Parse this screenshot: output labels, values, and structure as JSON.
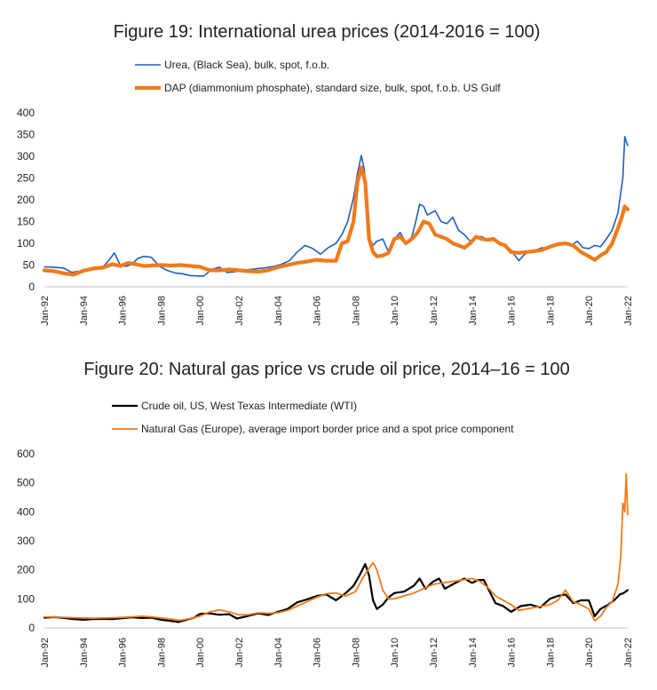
{
  "charts": [
    {
      "id": "fig19",
      "title": "Figure 19: International urea prices (2014-2016 = 100)"
    },
    {
      "id": "fig20",
      "title": "Figure 20: Natural gas price vs crude oil price, 2014–16 = 100"
    }
  ],
  "chart_data": [
    {
      "type": "line",
      "title": "Figure 19: International urea prices (2014-2016 = 100)",
      "xlabel": "",
      "ylabel": "",
      "ylim": [
        0,
        400
      ],
      "yticks": [
        0,
        50,
        100,
        150,
        200,
        250,
        300,
        350,
        400
      ],
      "xlim": [
        1992,
        2022
      ],
      "xticks": [
        "Jan-92",
        "Jan-94",
        "Jan-96",
        "Jan-98",
        "Jan-00",
        "Jan-02",
        "Jan-04",
        "Jan-06",
        "Jan-08",
        "Jan-10",
        "Jan-12",
        "Jan-14",
        "Jan-16",
        "Jan-18",
        "Jan-20",
        "Jan-22"
      ],
      "grid": false,
      "legend_position": "top-left",
      "series": [
        {
          "name": "Urea, (Black Sea), bulk, spot, f.o.b.",
          "color": "#1f5fbf",
          "width": 1.6,
          "x": [
            1992.0,
            1992.5,
            1993.0,
            1993.4,
            1993.8,
            1994.2,
            1994.6,
            1995.0,
            1995.3,
            1995.6,
            1995.9,
            1996.2,
            1996.5,
            1996.8,
            1997.1,
            1997.5,
            1997.9,
            1998.3,
            1998.7,
            1999.1,
            1999.5,
            1999.9,
            2000.2,
            2000.6,
            2001.0,
            2001.4,
            2001.8,
            2002.2,
            2002.6,
            2003.0,
            2003.4,
            2003.8,
            2004.2,
            2004.6,
            2005.0,
            2005.4,
            2005.8,
            2006.2,
            2006.6,
            2007.0,
            2007.3,
            2007.6,
            2007.9,
            2008.1,
            2008.3,
            2008.45,
            2008.6,
            2008.75,
            2008.9,
            2009.1,
            2009.4,
            2009.7,
            2010.0,
            2010.3,
            2010.6,
            2010.9,
            2011.1,
            2011.3,
            2011.5,
            2011.7,
            2011.9,
            2012.1,
            2012.4,
            2012.7,
            2013.0,
            2013.3,
            2013.6,
            2013.9,
            2014.2,
            2014.5,
            2014.8,
            2015.1,
            2015.4,
            2015.7,
            2016.0,
            2016.2,
            2016.4,
            2016.7,
            2017.0,
            2017.3,
            2017.6,
            2017.9,
            2018.2,
            2018.5,
            2018.8,
            2019.1,
            2019.4,
            2019.7,
            2020.0,
            2020.3,
            2020.6,
            2020.9,
            2021.2,
            2021.5,
            2021.75,
            2021.85,
            2021.92,
            2022.0
          ],
          "y": [
            46,
            45,
            43,
            33,
            36,
            41,
            40,
            45,
            60,
            78,
            50,
            47,
            52,
            65,
            70,
            68,
            48,
            38,
            32,
            30,
            26,
            25,
            25,
            40,
            45,
            33,
            35,
            38,
            40,
            42,
            44,
            47,
            52,
            60,
            80,
            95,
            88,
            75,
            90,
            100,
            120,
            150,
            205,
            260,
            302,
            270,
            180,
            110,
            95,
            105,
            110,
            80,
            110,
            125,
            100,
            115,
            150,
            190,
            185,
            165,
            170,
            175,
            150,
            145,
            160,
            130,
            120,
            105,
            115,
            115,
            108,
            112,
            100,
            95,
            85,
            72,
            60,
            75,
            82,
            85,
            90,
            88,
            95,
            100,
            100,
            95,
            105,
            90,
            88,
            95,
            92,
            110,
            130,
            170,
            250,
            345,
            335,
            325
          ]
        },
        {
          "name": "DAP (diammonium phosphate), standard size, bulk, spot, f.o.b. US Gulf",
          "color": "#f07a1a",
          "width": 4.2,
          "x": [
            1992.0,
            1992.5,
            1993.0,
            1993.5,
            1994.0,
            1994.5,
            1995.0,
            1995.5,
            1995.9,
            1996.3,
            1996.7,
            1997.1,
            1997.5,
            1998.0,
            1998.5,
            1999.0,
            1999.5,
            2000.0,
            2000.5,
            2001.0,
            2001.5,
            2002.0,
            2002.5,
            2003.0,
            2003.5,
            2004.0,
            2004.5,
            2005.0,
            2005.5,
            2006.0,
            2006.5,
            2007.0,
            2007.3,
            2007.6,
            2007.9,
            2008.1,
            2008.3,
            2008.5,
            2008.7,
            2008.9,
            2009.1,
            2009.4,
            2009.7,
            2010.0,
            2010.3,
            2010.6,
            2010.9,
            2011.2,
            2011.5,
            2011.8,
            2012.1,
            2012.4,
            2012.7,
            2013.0,
            2013.3,
            2013.6,
            2013.9,
            2014.2,
            2014.5,
            2014.8,
            2015.1,
            2015.4,
            2015.7,
            2016.0,
            2016.4,
            2016.8,
            2017.2,
            2017.6,
            2018.0,
            2018.4,
            2018.8,
            2019.2,
            2019.6,
            2020.0,
            2020.3,
            2020.6,
            2020.9,
            2021.2,
            2021.5,
            2021.7,
            2021.85,
            2022.0
          ],
          "y": [
            38,
            36,
            31,
            28,
            37,
            42,
            44,
            52,
            48,
            55,
            52,
            48,
            49,
            50,
            49,
            50,
            48,
            46,
            38,
            38,
            40,
            38,
            36,
            35,
            38,
            45,
            50,
            55,
            58,
            62,
            60,
            60,
            100,
            105,
            150,
            240,
            275,
            240,
            110,
            80,
            70,
            72,
            78,
            110,
            115,
            100,
            110,
            125,
            150,
            145,
            120,
            115,
            110,
            100,
            95,
            90,
            100,
            115,
            110,
            108,
            110,
            100,
            95,
            80,
            78,
            80,
            82,
            85,
            92,
            98,
            100,
            95,
            80,
            70,
            62,
            72,
            80,
            100,
            135,
            160,
            185,
            178
          ]
        }
      ]
    },
    {
      "type": "line",
      "title": "Figure 20: Natural gas price vs crude oil price, 2014–16 = 100",
      "xlabel": "",
      "ylabel": "",
      "ylim": [
        0,
        600
      ],
      "yticks": [
        0,
        100,
        200,
        300,
        400,
        500,
        600
      ],
      "xlim": [
        1992,
        2022
      ],
      "xticks": [
        "Jan-92",
        "Jan-94",
        "Jan-96",
        "Jan-98",
        "Jan-00",
        "Jan-02",
        "Jan-04",
        "Jan-06",
        "Jan-08",
        "Jan-10",
        "Jan-12",
        "Jan-14",
        "Jan-16",
        "Jan-18",
        "Jan-20",
        "Jan-22"
      ],
      "grid": false,
      "legend_position": "top-left",
      "series": [
        {
          "name": "Crude oil, US, West Texas Intermediate (WTI)",
          "color": "#000000",
          "width": 2.2,
          "x": [
            1992.0,
            1992.5,
            1993.0,
            1993.5,
            1994.0,
            1994.5,
            1995.0,
            1995.5,
            1996.0,
            1996.5,
            1997.0,
            1997.5,
            1998.0,
            1998.5,
            1998.9,
            1999.3,
            1999.7,
            2000.0,
            2000.5,
            2001.0,
            2001.5,
            2001.9,
            2002.3,
            2002.7,
            2003.0,
            2003.5,
            2004.0,
            2004.5,
            2005.0,
            2005.5,
            2006.0,
            2006.5,
            2007.0,
            2007.5,
            2007.9,
            2008.2,
            2008.5,
            2008.7,
            2008.9,
            2009.1,
            2009.4,
            2009.7,
            2010.0,
            2010.5,
            2011.0,
            2011.3,
            2011.6,
            2012.0,
            2012.3,
            2012.6,
            2013.0,
            2013.3,
            2013.6,
            2014.0,
            2014.3,
            2014.6,
            2014.9,
            2015.2,
            2015.6,
            2016.0,
            2016.5,
            2017.0,
            2017.5,
            2018.0,
            2018.4,
            2018.8,
            2019.2,
            2019.6,
            2020.0,
            2020.3,
            2020.6,
            2021.0,
            2021.3,
            2021.6,
            2021.8,
            2022.0
          ],
          "y": [
            35,
            37,
            34,
            30,
            28,
            30,
            31,
            30,
            33,
            36,
            34,
            35,
            28,
            24,
            20,
            28,
            35,
            48,
            50,
            45,
            47,
            32,
            38,
            45,
            50,
            44,
            55,
            65,
            88,
            98,
            110,
            115,
            95,
            120,
            145,
            180,
            220,
            180,
            95,
            65,
            80,
            105,
            120,
            125,
            145,
            170,
            135,
            160,
            170,
            135,
            150,
            160,
            170,
            155,
            165,
            165,
            125,
            85,
            75,
            55,
            75,
            80,
            70,
            100,
            110,
            115,
            85,
            95,
            95,
            40,
            65,
            80,
            95,
            115,
            120,
            130
          ]
        },
        {
          "name": "Natural Gas (Europe), average import border price and a spot price component",
          "color": "#f07a1a",
          "width": 1.8,
          "x": [
            1992.0,
            1992.5,
            1993.0,
            1993.5,
            1994.0,
            1994.5,
            1995.0,
            1995.5,
            1996.0,
            1996.5,
            1997.0,
            1997.5,
            1998.0,
            1998.5,
            1999.0,
            1999.5,
            2000.0,
            2000.5,
            2001.0,
            2001.5,
            2002.0,
            2002.5,
            2003.0,
            2003.5,
            2004.0,
            2004.5,
            2005.0,
            2005.5,
            2006.0,
            2006.5,
            2007.0,
            2007.5,
            2008.0,
            2008.4,
            2008.7,
            2008.9,
            2009.1,
            2009.4,
            2009.7,
            2010.0,
            2010.5,
            2011.0,
            2011.5,
            2012.0,
            2012.5,
            2013.0,
            2013.5,
            2014.0,
            2014.4,
            2014.8,
            2015.2,
            2015.6,
            2016.0,
            2016.4,
            2016.8,
            2017.2,
            2017.6,
            2018.0,
            2018.4,
            2018.8,
            2019.2,
            2019.6,
            2020.0,
            2020.3,
            2020.6,
            2020.9,
            2021.2,
            2021.5,
            2021.65,
            2021.75,
            2021.85,
            2021.92,
            2022.0
          ],
          "y": [
            38,
            37,
            36,
            35,
            34,
            33,
            34,
            35,
            36,
            38,
            40,
            38,
            34,
            30,
            26,
            32,
            40,
            55,
            62,
            55,
            45,
            45,
            52,
            50,
            52,
            60,
            75,
            90,
            105,
            118,
            120,
            110,
            125,
            175,
            205,
            225,
            200,
            130,
            100,
            100,
            110,
            120,
            135,
            150,
            155,
            160,
            165,
            170,
            160,
            140,
            110,
            95,
            80,
            60,
            65,
            70,
            75,
            80,
            95,
            130,
            90,
            80,
            65,
            25,
            40,
            70,
            90,
            150,
            250,
            430,
            400,
            530,
            390
          ]
        }
      ]
    }
  ]
}
